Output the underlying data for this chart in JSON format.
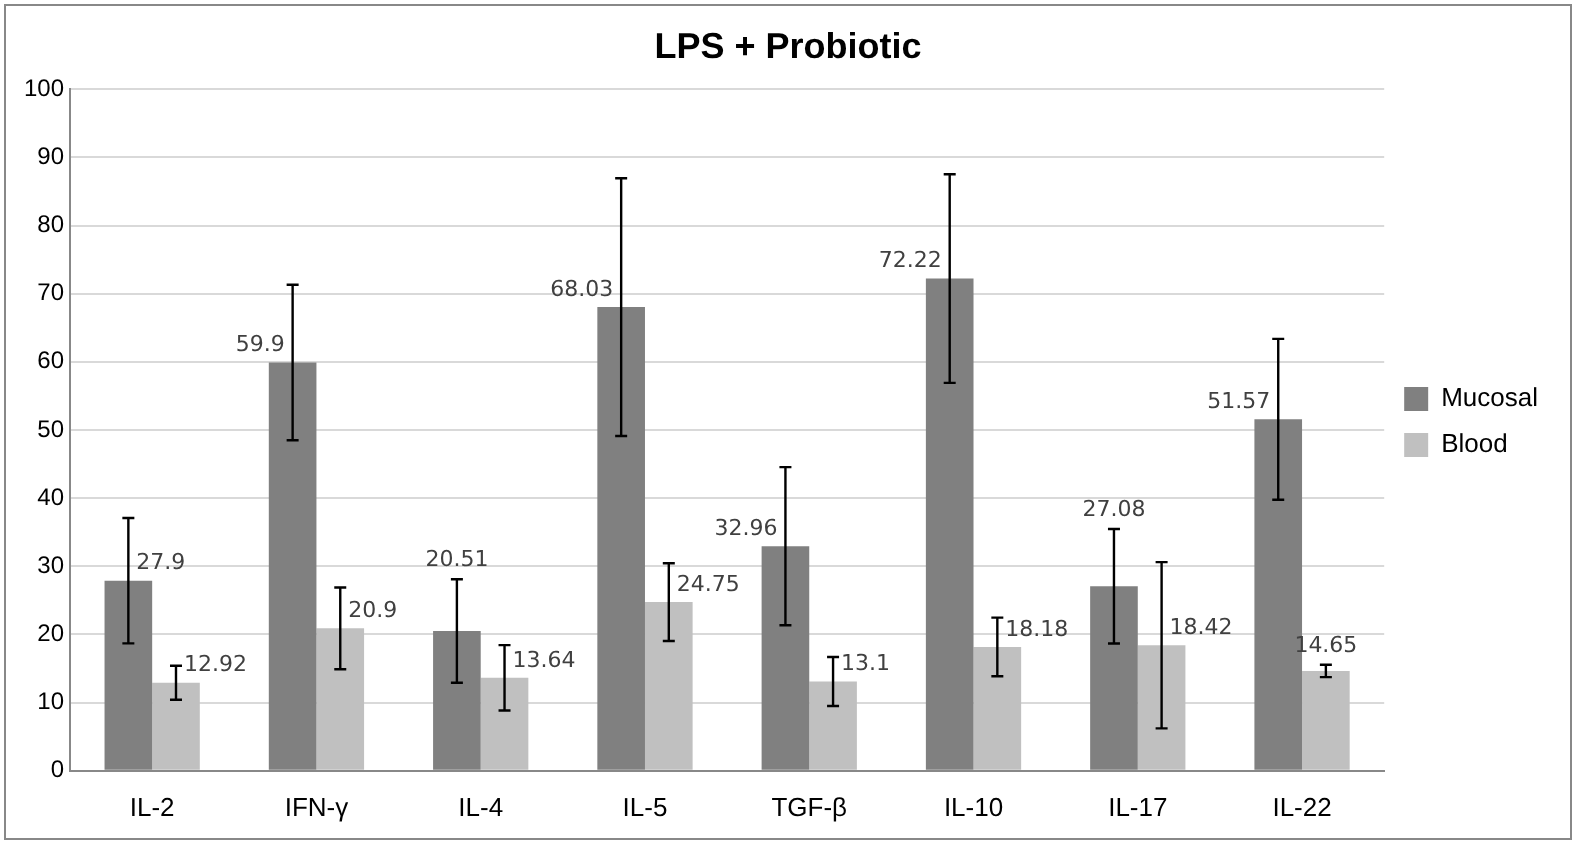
{
  "chart_data": {
    "type": "bar",
    "title": "LPS + Probiotic",
    "categories": [
      "IL-2",
      "IFN-γ",
      "IL-4",
      "IL-5",
      "TGF-β",
      "IL-10",
      "IL-17",
      "IL-22"
    ],
    "series": [
      {
        "name": "Mucosal",
        "color": "#808080",
        "values": [
          27.9,
          59.9,
          20.51,
          68.03,
          32.96,
          72.22,
          27.08,
          51.57
        ],
        "errors": [
          9.2,
          11.4,
          7.6,
          18.9,
          11.6,
          15.3,
          8.4,
          11.8
        ]
      },
      {
        "name": "Blood",
        "color": "#c0c0c0",
        "values": [
          12.92,
          20.9,
          13.64,
          24.75,
          13.1,
          18.18,
          18.42,
          14.65
        ],
        "errors": [
          2.5,
          6,
          4.8,
          5.7,
          3.6,
          4.3,
          12.2,
          0.9
        ]
      }
    ],
    "ylim": [
      0,
      100
    ],
    "yticks": [
      0,
      10,
      20,
      30,
      40,
      50,
      60,
      70,
      80,
      90,
      100
    ],
    "grid": "y",
    "legend": "right",
    "data_labels": true
  }
}
